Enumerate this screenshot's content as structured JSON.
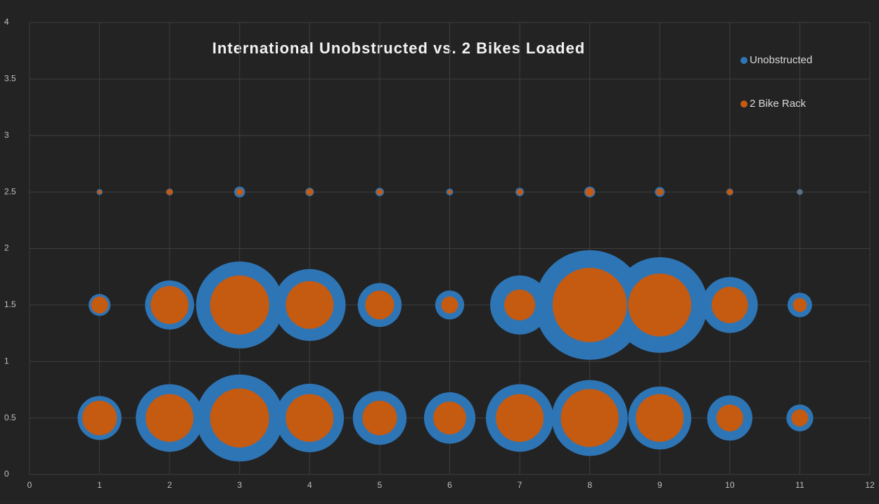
{
  "chart_data": {
    "type": "bubble",
    "title": "International Unobstructed vs. 2 Bikes Loaded",
    "xlim": [
      0,
      12
    ],
    "xticks": [
      0,
      1,
      2,
      3,
      4,
      5,
      6,
      7,
      8,
      9,
      10,
      11,
      12
    ],
    "ylim": [
      0,
      4
    ],
    "yticks": [
      0,
      0.5,
      1,
      1.5,
      2,
      2.5,
      3,
      3.5,
      4
    ],
    "grid": true,
    "legend": "top-right",
    "series": [
      {
        "name": "Unobstructed",
        "color": "#2e75b6",
        "x": [
          1,
          2,
          3,
          4,
          5,
          6,
          7,
          8,
          9,
          10,
          11,
          1,
          2,
          3,
          4,
          5,
          6,
          7,
          8,
          9,
          10,
          11,
          1,
          2,
          3,
          4,
          5,
          6,
          7,
          8,
          9,
          10,
          11
        ],
        "y": [
          0.5,
          0.5,
          0.5,
          0.5,
          0.5,
          0.5,
          0.5,
          0.5,
          0.5,
          0.5,
          0.5,
          1.5,
          1.5,
          1.5,
          1.5,
          1.5,
          1.5,
          1.5,
          1.5,
          1.5,
          1.5,
          1.5,
          2.5,
          2.5,
          2.5,
          2.5,
          2.5,
          2.5,
          2.5,
          2.5,
          2.5,
          2.5,
          2.5
        ],
        "sizes": [
          16,
          38,
          63,
          39,
          24,
          22,
          38,
          48,
          33,
          17,
          6,
          4,
          20,
          63,
          43,
          16,
          7,
          29,
          100,
          76,
          26,
          5,
          0.3,
          0.4,
          1,
          0.6,
          0.6,
          0.4,
          0.6,
          1,
          0.8,
          0.4,
          0.3
        ]
      },
      {
        "name": "2 Bike Rack",
        "color": "#c55a11",
        "x": [
          1,
          2,
          3,
          4,
          5,
          6,
          7,
          8,
          9,
          10,
          11,
          1,
          2,
          3,
          4,
          5,
          6,
          7,
          8,
          9,
          10,
          11,
          1,
          2,
          3,
          4,
          5,
          6,
          7,
          8,
          9,
          10,
          11
        ],
        "y": [
          0.5,
          0.5,
          0.5,
          0.5,
          0.5,
          0.5,
          0.5,
          0.5,
          0.5,
          0.5,
          0.5,
          1.5,
          1.5,
          1.5,
          1.5,
          1.5,
          1.5,
          1.5,
          1.5,
          1.5,
          1.5,
          1.5,
          2.5,
          2.5,
          2.5,
          2.5,
          2.5,
          2.5,
          2.5,
          2.5,
          2.5,
          2.5,
          2.5
        ],
        "sizes": [
          10,
          19,
          29,
          19,
          10,
          9,
          19,
          28,
          19,
          6,
          2.4,
          2.4,
          12,
          29,
          19,
          7,
          2.4,
          8,
          46,
          33,
          11,
          1.6,
          0.15,
          0.3,
          0.4,
          0.4,
          0.3,
          0.15,
          0.3,
          0.6,
          0.4,
          0.3,
          0.07
        ]
      }
    ]
  }
}
